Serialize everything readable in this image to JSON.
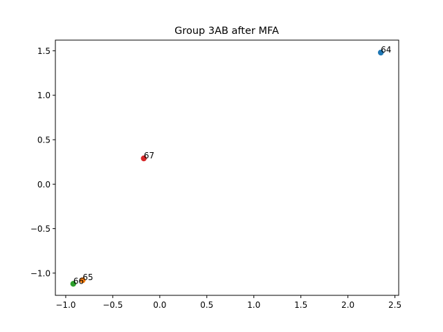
{
  "chart_data": {
    "type": "scatter",
    "title": "Group 3AB after MFA",
    "xlabel": "",
    "ylabel": "",
    "xlim": [
      -1.11,
      2.54
    ],
    "ylim": [
      -1.25,
      1.62
    ],
    "xticks": [
      -1.0,
      -0.5,
      0.0,
      0.5,
      1.0,
      1.5,
      2.0,
      2.5
    ],
    "yticks": [
      -1.0,
      -0.5,
      0.0,
      0.5,
      1.0,
      1.5
    ],
    "xtick_labels": [
      "−1.0",
      "−0.5",
      "0.0",
      "0.5",
      "1.0",
      "1.5",
      "2.0",
      "2.5"
    ],
    "ytick_labels": [
      "−1.0",
      "−0.5",
      "0.0",
      "0.5",
      "1.0",
      "1.5"
    ],
    "grid": false,
    "points": [
      {
        "label": "64",
        "x": 2.35,
        "y": 1.48,
        "color": "#1f77b4"
      },
      {
        "label": "65",
        "x": -0.82,
        "y": -1.08,
        "color": "#ff7f0e"
      },
      {
        "label": "66",
        "x": -0.92,
        "y": -1.12,
        "color": "#2ca02c"
      },
      {
        "label": "67",
        "x": -0.17,
        "y": 0.29,
        "color": "#d62728"
      }
    ]
  }
}
